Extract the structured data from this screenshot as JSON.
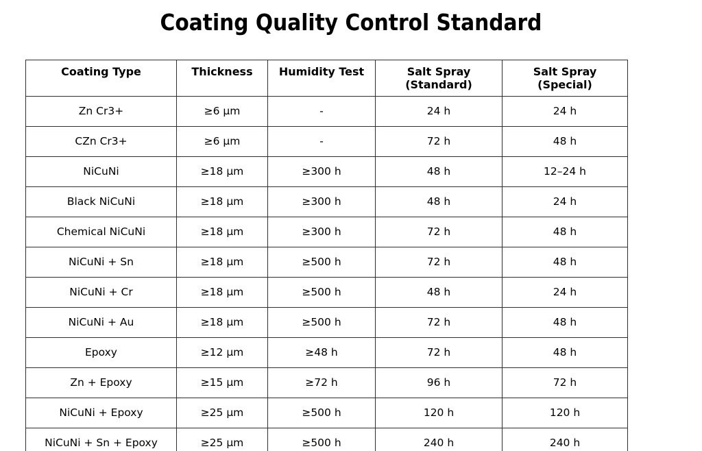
{
  "title": "Coating Quality Control Standard",
  "chart_data": {
    "type": "table",
    "title": "Coating Quality Control Standard",
    "columns": [
      "Coating Type",
      "Thickness",
      "Humidity Test",
      "Salt Spray (Standard)",
      "Salt Spray (Special)"
    ],
    "rows": [
      [
        "Zn Cr3+",
        "≥6 μm",
        "-",
        "24 h",
        "24 h"
      ],
      [
        "CZn Cr3+",
        "≥6 μm",
        "-",
        "72 h",
        "48 h"
      ],
      [
        "NiCuNi",
        "≥18 μm",
        "≥300 h",
        "48 h",
        "12–24 h"
      ],
      [
        "Black NiCuNi",
        "≥18 μm",
        "≥300 h",
        "48 h",
        "24 h"
      ],
      [
        "Chemical NiCuNi",
        "≥18 μm",
        "≥300 h",
        "72 h",
        "48 h"
      ],
      [
        "NiCuNi + Sn",
        "≥18 μm",
        "≥500 h",
        "72 h",
        "48 h"
      ],
      [
        "NiCuNi + Cr",
        "≥18 μm",
        "≥500 h",
        "48 h",
        "24 h"
      ],
      [
        "NiCuNi + Au",
        "≥18 μm",
        "≥500 h",
        "72 h",
        "48 h"
      ],
      [
        "Epoxy",
        "≥12 μm",
        "≥48 h",
        "72 h",
        "48 h"
      ],
      [
        "Zn + Epoxy",
        "≥15 μm",
        "≥72 h",
        "96 h",
        "72 h"
      ],
      [
        "NiCuNi + Epoxy",
        "≥25 μm",
        "≥500 h",
        "120 h",
        "120 h"
      ],
      [
        "NiCuNi + Sn + Epoxy",
        "≥25 μm",
        "≥500 h",
        "240 h",
        "240 h"
      ]
    ]
  },
  "table": {
    "column_headers": [
      "Coating Type",
      "Thickness",
      "Humidity Test",
      "Salt Spray\n(Standard)",
      "Salt Spray\n(Special)"
    ],
    "rows": [
      [
        "Zn Cr3+",
        "≥6 μm",
        "-",
        "24 h",
        "24 h"
      ],
      [
        "CZn Cr3+",
        "≥6 μm",
        "-",
        "72 h",
        "48 h"
      ],
      [
        "NiCuNi",
        "≥18 μm",
        "≥300 h",
        "48 h",
        "12–24 h"
      ],
      [
        "Black NiCuNi",
        "≥18 μm",
        "≥300 h",
        "48 h",
        "24 h"
      ],
      [
        "Chemical NiCuNi",
        "≥18 μm",
        "≥300 h",
        "72 h",
        "48 h"
      ],
      [
        "NiCuNi + Sn",
        "≥18 μm",
        "≥500 h",
        "72 h",
        "48 h"
      ],
      [
        "NiCuNi + Cr",
        "≥18 μm",
        "≥500 h",
        "48 h",
        "24 h"
      ],
      [
        "NiCuNi + Au",
        "≥18 μm",
        "≥500 h",
        "72 h",
        "48 h"
      ],
      [
        "Epoxy",
        "≥12 μm",
        "≥48 h",
        "72 h",
        "48 h"
      ],
      [
        "Zn + Epoxy",
        "≥15 μm",
        "≥72 h",
        "96 h",
        "72 h"
      ],
      [
        "NiCuNi + Epoxy",
        "≥25 μm",
        "≥500 h",
        "120 h",
        "120 h"
      ],
      [
        "NiCuNi + Sn + Epoxy",
        "≥25 μm",
        "≥500 h",
        "240 h",
        "240 h"
      ]
    ]
  },
  "colors": {
    "background": "#ffffff",
    "text": "#000000",
    "border": "#2e2e2e"
  }
}
